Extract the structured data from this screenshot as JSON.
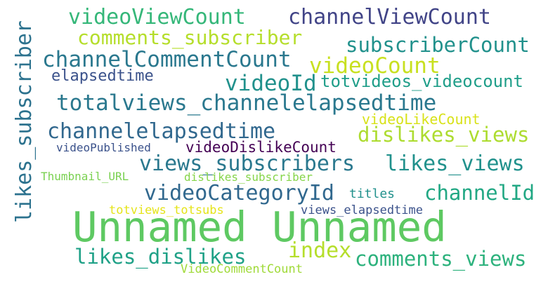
{
  "word_cloud": {
    "words": [
      {
        "text": "Unnamed Unnamed",
        "color": "#5ec962"
      },
      {
        "text": "videoViewCount",
        "color": "#35b779"
      },
      {
        "text": "channelViewCount",
        "color": "#414487"
      },
      {
        "text": "comments_subscriber",
        "color": "#b5de2b"
      },
      {
        "text": "subscriberCount",
        "color": "#21918c"
      },
      {
        "text": "channelCommentCount",
        "color": "#2a788e"
      },
      {
        "text": "videoCount",
        "color": "#c8e020"
      },
      {
        "text": "elapsedtime",
        "color": "#3b528b"
      },
      {
        "text": "videoId",
        "color": "#21918c"
      },
      {
        "text": "totvideos_videocount",
        "color": "#1f9e89"
      },
      {
        "text": "totalviews_channelelapsedtime",
        "color": "#2a788e"
      },
      {
        "text": "videoLikeCount",
        "color": "#d8e219"
      },
      {
        "text": "channelelapsedtime",
        "color": "#31688e"
      },
      {
        "text": "dislikes_views",
        "color": "#addc30"
      },
      {
        "text": "videoPublished",
        "color": "#3b528b"
      },
      {
        "text": "videoDislikeCount",
        "color": "#440154"
      },
      {
        "text": "views_subscribers",
        "color": "#2a788e"
      },
      {
        "text": "likes_views",
        "color": "#21918c"
      },
      {
        "text": "Thumbnail_URL",
        "color": "#7ad151"
      },
      {
        "text": "dislikes_subscriber",
        "color": "#86d549"
      },
      {
        "text": "videoCategoryId",
        "color": "#31688e"
      },
      {
        "text": "channelId",
        "color": "#22a884"
      },
      {
        "text": "titles",
        "color": "#21918c"
      },
      {
        "text": "totviews_totsubs",
        "color": "#e5e419"
      },
      {
        "text": "views_elapsedtime",
        "color": "#3b528b"
      },
      {
        "text": "likes_dislikes",
        "color": "#1fa187"
      },
      {
        "text": "index",
        "color": "#b5de2b"
      },
      {
        "text": "comments_views",
        "color": "#2db27d"
      },
      {
        "text": "VideoCommentCount",
        "color": "#a0da39"
      },
      {
        "text": "likes_subscriber",
        "color": "#2c728e"
      }
    ]
  }
}
